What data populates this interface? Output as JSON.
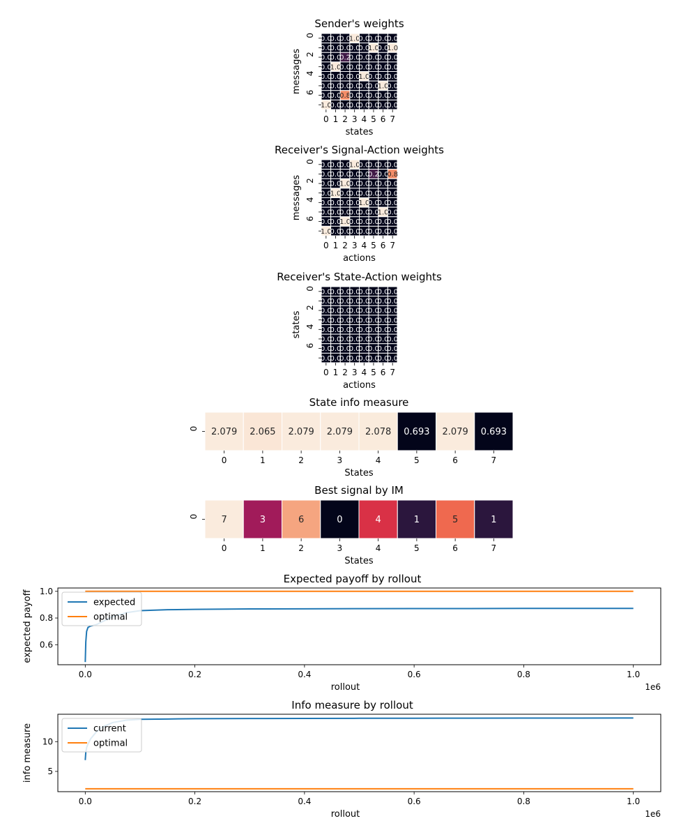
{
  "chart_data": [
    {
      "type": "heatmap",
      "title": "Sender's weights",
      "xlabel": "states",
      "ylabel": "messages",
      "x_ticks": [
        "0",
        "1",
        "2",
        "3",
        "4",
        "5",
        "6",
        "7"
      ],
      "y_ticks": [
        "0",
        "",
        "2",
        "",
        "4",
        "",
        "6",
        ""
      ],
      "values": [
        [
          0,
          0,
          0,
          1,
          0,
          0,
          0,
          0
        ],
        [
          0,
          0,
          0,
          0,
          0,
          1,
          0,
          1
        ],
        [
          0,
          0,
          0.2,
          0,
          0,
          0,
          0,
          0
        ],
        [
          0,
          1,
          0,
          0,
          0,
          0,
          0,
          0
        ],
        [
          0,
          0,
          0,
          0,
          1,
          0,
          0,
          0
        ],
        [
          0,
          0,
          0,
          0,
          0,
          0,
          1,
          0
        ],
        [
          0,
          0,
          0.8,
          0,
          0,
          0,
          0,
          0
        ],
        [
          1,
          0,
          0,
          0,
          0,
          0,
          0,
          0
        ]
      ],
      "annotations": [
        [
          "0.0",
          "0.0",
          "0.0",
          "1.0",
          "0.0",
          "0.0",
          "0.0",
          "0.0"
        ],
        [
          "0.0",
          "0.0",
          "0.0",
          "0.0",
          "0.0",
          "1.0",
          "0.0",
          "1.0"
        ],
        [
          "0.0",
          "0.0",
          "0.2",
          "0.0",
          "0.0",
          "0.0",
          "0.0",
          "0.0"
        ],
        [
          "0.0",
          "1.0",
          "0.0",
          "0.0",
          "0.0",
          "0.0",
          "0.0",
          "0.0"
        ],
        [
          "0.0",
          "0.0",
          "0.0",
          "0.0",
          "1.0",
          "0.0",
          "0.0",
          "0.0"
        ],
        [
          "0.0",
          "0.0",
          "0.0",
          "0.0",
          "0.0",
          "0.0",
          "1.0",
          "0.0"
        ],
        [
          "0.0",
          "0.0",
          "0.8",
          "0.0",
          "0.0",
          "0.0",
          "0.0",
          "0.0"
        ],
        [
          "1.0",
          "0.0",
          "0.0",
          "0.0",
          "0.0",
          "0.0",
          "0.0",
          "0.0"
        ]
      ],
      "vmin": 0,
      "vmax": 1
    },
    {
      "type": "heatmap",
      "title": "Receiver's Signal-Action weights",
      "xlabel": "actions",
      "ylabel": "messages",
      "x_ticks": [
        "0",
        "1",
        "2",
        "3",
        "4",
        "5",
        "6",
        "7"
      ],
      "y_ticks": [
        "0",
        "",
        "2",
        "",
        "4",
        "",
        "6",
        ""
      ],
      "values": [
        [
          0,
          0,
          0,
          1,
          0,
          0,
          0,
          0
        ],
        [
          0,
          0,
          0,
          0,
          0,
          0.2,
          0,
          0.8
        ],
        [
          0,
          0,
          1,
          0,
          0,
          0,
          0,
          0
        ],
        [
          0,
          1,
          0,
          0,
          0,
          0,
          0,
          0
        ],
        [
          0,
          0,
          0,
          0,
          1,
          0,
          0,
          0
        ],
        [
          0,
          0,
          0,
          0,
          0,
          0,
          1,
          0
        ],
        [
          0,
          0,
          1,
          0,
          0,
          0,
          0,
          0
        ],
        [
          1,
          0,
          0,
          0,
          0,
          0,
          0,
          0
        ]
      ],
      "annotations": [
        [
          "0.0",
          "0.0",
          "0.0",
          "1.0",
          "0.0",
          "0.0",
          "0.0",
          "0.0"
        ],
        [
          "0.0",
          "0.0",
          "0.0",
          "0.0",
          "0.0",
          "0.2",
          "0.0",
          "0.8"
        ],
        [
          "0.0",
          "0.0",
          "1.0",
          "0.0",
          "0.0",
          "0.0",
          "0.0",
          "0.0"
        ],
        [
          "0.0",
          "1.0",
          "0.0",
          "0.0",
          "0.0",
          "0.0",
          "0.0",
          "0.0"
        ],
        [
          "0.0",
          "0.0",
          "0.0",
          "0.0",
          "1.0",
          "0.0",
          "0.0",
          "0.0"
        ],
        [
          "0.0",
          "0.0",
          "0.0",
          "0.0",
          "0.0",
          "0.0",
          "1.0",
          "0.0"
        ],
        [
          "0.0",
          "0.0",
          "1.0",
          "0.0",
          "0.0",
          "0.0",
          "0.0",
          "0.0"
        ],
        [
          "1.0",
          "0.0",
          "0.0",
          "0.0",
          "0.0",
          "0.0",
          "0.0",
          "0.0"
        ]
      ],
      "vmin": 0,
      "vmax": 1
    },
    {
      "type": "heatmap",
      "title": "Receiver's State-Action weights",
      "xlabel": "actions",
      "ylabel": "states",
      "x_ticks": [
        "0",
        "1",
        "2",
        "3",
        "4",
        "5",
        "6",
        "7"
      ],
      "y_ticks": [
        "0",
        "",
        "2",
        "",
        "4",
        "",
        "6",
        ""
      ],
      "values": [
        [
          0,
          0,
          0,
          0,
          0,
          0,
          0,
          0
        ],
        [
          0,
          0,
          0,
          0,
          0,
          0,
          0,
          0
        ],
        [
          0,
          0,
          0,
          0,
          0,
          0,
          0,
          0
        ],
        [
          0,
          0,
          0,
          0,
          0,
          0,
          0,
          0
        ],
        [
          0,
          0,
          0,
          0,
          0,
          0,
          0,
          0
        ],
        [
          0,
          0,
          0,
          0,
          0,
          0,
          0,
          0
        ],
        [
          0,
          0,
          0,
          0,
          0,
          0,
          0,
          0
        ],
        [
          0,
          0,
          0,
          0,
          0,
          0,
          0,
          0
        ]
      ],
      "annotations": [
        [
          "0.0",
          "0.0",
          "0.0",
          "0.0",
          "0.0",
          "0.0",
          "0.0",
          "0.0"
        ],
        [
          "0.0",
          "0.0",
          "0.0",
          "0.0",
          "0.0",
          "0.0",
          "0.0",
          "0.0"
        ],
        [
          "0.0",
          "0.0",
          "0.0",
          "0.0",
          "0.0",
          "0.0",
          "0.0",
          "0.0"
        ],
        [
          "0.0",
          "0.0",
          "0.0",
          "0.0",
          "0.0",
          "0.0",
          "0.0",
          "0.0"
        ],
        [
          "0.0",
          "0.0",
          "0.0",
          "0.0",
          "0.0",
          "0.0",
          "0.0",
          "0.0"
        ],
        [
          "0.0",
          "0.0",
          "0.0",
          "0.0",
          "0.0",
          "0.0",
          "0.0",
          "0.0"
        ],
        [
          "0.0",
          "0.0",
          "0.0",
          "0.0",
          "0.0",
          "0.0",
          "0.0",
          "0.0"
        ],
        [
          "0.0",
          "0.0",
          "0.0",
          "0.0",
          "0.0",
          "0.0",
          "0.0",
          "0.0"
        ]
      ],
      "vmin": 0,
      "vmax": 1
    },
    {
      "type": "heatmap",
      "title": "State info measure",
      "xlabel": "States",
      "ylabel": "",
      "x_ticks": [
        "0",
        "1",
        "2",
        "3",
        "4",
        "5",
        "6",
        "7"
      ],
      "y_ticks": [
        "0"
      ],
      "values": [
        [
          2.079,
          2.065,
          2.079,
          2.079,
          2.078,
          0.693,
          2.079,
          0.693
        ]
      ],
      "annotations": [
        [
          "2.079",
          "2.065",
          "2.079",
          "2.079",
          "2.078",
          "0.693",
          "2.079",
          "0.693"
        ]
      ],
      "vmin": 0.693,
      "vmax": 2.079
    },
    {
      "type": "heatmap",
      "title": "Best signal by IM",
      "xlabel": "States",
      "ylabel": "",
      "x_ticks": [
        "0",
        "1",
        "2",
        "3",
        "4",
        "5",
        "6",
        "7"
      ],
      "y_ticks": [
        "0"
      ],
      "values": [
        [
          7,
          3,
          6,
          0,
          4,
          1,
          5,
          1
        ]
      ],
      "annotations": [
        [
          "7",
          "3",
          "6",
          "0",
          "4",
          "1",
          "5",
          "1"
        ]
      ],
      "vmin": 0,
      "vmax": 7
    },
    {
      "type": "line",
      "title": "Expected payoff by rollout",
      "xlabel": "rollout",
      "ylabel": "expected payoff",
      "x_offset_label": "1e6",
      "xlim": [
        -50000,
        1050000
      ],
      "ylim": [
        0.45,
        1.025
      ],
      "x_ticks": [
        0,
        200000,
        400000,
        600000,
        800000,
        1000000
      ],
      "x_tick_labels": [
        "0.0",
        "0.2",
        "0.4",
        "0.6",
        "0.8",
        "1.0"
      ],
      "y_ticks": [
        0.6,
        0.8,
        1.0
      ],
      "y_tick_labels": [
        "0.6",
        "0.8",
        "1.0"
      ],
      "legend_position": "upper-left",
      "series": [
        {
          "name": "expected",
          "color": "#1f77b4",
          "x": [
            0,
            1000,
            2500,
            5000,
            10000,
            20000,
            30000,
            50000,
            75000,
            100000,
            150000,
            200000,
            300000,
            400000,
            500000,
            600000,
            700000,
            800000,
            900000,
            1000000
          ],
          "y": [
            0.47,
            0.62,
            0.7,
            0.73,
            0.74,
            0.75,
            0.77,
            0.81,
            0.84,
            0.855,
            0.862,
            0.865,
            0.868,
            0.869,
            0.87,
            0.871,
            0.871,
            0.872,
            0.872,
            0.872
          ]
        },
        {
          "name": "optimal",
          "color": "#ff7f0e",
          "x": [
            0,
            1000000
          ],
          "y": [
            1.0,
            1.0
          ]
        }
      ]
    },
    {
      "type": "line",
      "title": "Info measure by rollout",
      "xlabel": "rollout",
      "ylabel": "info measure",
      "x_offset_label": "1e6",
      "xlim": [
        -50000,
        1050000
      ],
      "ylim": [
        1.6,
        14.6
      ],
      "x_ticks": [
        0,
        200000,
        400000,
        600000,
        800000,
        1000000
      ],
      "x_tick_labels": [
        "0.0",
        "0.2",
        "0.4",
        "0.6",
        "0.8",
        "1.0"
      ],
      "y_ticks": [
        5,
        10
      ],
      "y_tick_labels": [
        "5",
        "10"
      ],
      "legend_position": "upper-left",
      "series": [
        {
          "name": "current",
          "color": "#1f77b4",
          "x": [
            0,
            1000,
            2500,
            5000,
            10000,
            20000,
            30000,
            50000,
            75000,
            100000,
            150000,
            200000,
            300000,
            400000,
            500000,
            600000,
            700000,
            800000,
            900000,
            1000000
          ],
          "y": [
            6.9,
            8.2,
            9.0,
            9.6,
            10.5,
            11.6,
            12.4,
            13.2,
            13.6,
            13.75,
            13.8,
            13.85,
            13.88,
            13.9,
            13.92,
            13.93,
            13.94,
            13.95,
            13.96,
            13.97
          ]
        },
        {
          "name": "optimal",
          "color": "#ff7f0e",
          "x": [
            0,
            1000000
          ],
          "y": [
            2.08,
            2.08
          ]
        }
      ]
    }
  ]
}
